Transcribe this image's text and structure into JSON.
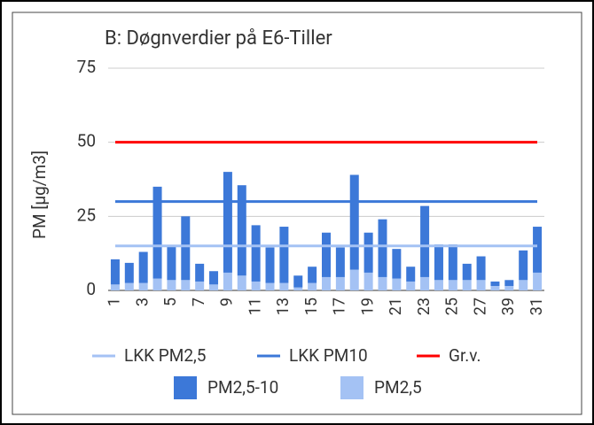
{
  "chart_data": {
    "type": "stacked_bar",
    "title": "B: Døgnverdier på E6-Tiller",
    "y_label": "PM [µg/m3]",
    "categories": [
      "1",
      null,
      "3",
      null,
      "5",
      null,
      "7",
      null,
      "9",
      null,
      "11",
      null,
      "13",
      null,
      "15",
      null,
      "17",
      null,
      "19",
      null,
      "21",
      null,
      "23",
      null,
      "25",
      null,
      "27",
      null,
      "39",
      null,
      "31"
    ],
    "series": [
      {
        "name": "PM2,5",
        "color": "#a4c2f4",
        "values": [
          2,
          2.5,
          2.5,
          4,
          3.5,
          3.5,
          3,
          2,
          6,
          5,
          3,
          2.5,
          2.5,
          1,
          2.5,
          4.5,
          4.5,
          7,
          6,
          4.5,
          4,
          3,
          4.5,
          3.5,
          3.5,
          3.5,
          3.5,
          1.5,
          1.5,
          3.5,
          6
        ]
      },
      {
        "name": "PM2,5-10",
        "color": "#3c78d8",
        "values": [
          8.5,
          6.8,
          10.5,
          31,
          11.5,
          21.5,
          6,
          4.5,
          34,
          30.5,
          19,
          12,
          19,
          4,
          5.5,
          15,
          10,
          32,
          13.5,
          19.5,
          10,
          5,
          24,
          12,
          12,
          5.5,
          8,
          1.5,
          2,
          10,
          15.5
        ]
      }
    ],
    "lines": [
      {
        "name": "LKK PM2,5",
        "color": "#a4c2f4",
        "value": 15
      },
      {
        "name": "LKK PM10",
        "color": "#3c78d8",
        "value": 30
      },
      {
        "name": "Gr.v.",
        "color": "#ff0000",
        "value": 50
      }
    ],
    "ylim": [
      0,
      75
    ],
    "yticks": [
      0,
      25,
      50,
      75
    ],
    "grid": true
  }
}
